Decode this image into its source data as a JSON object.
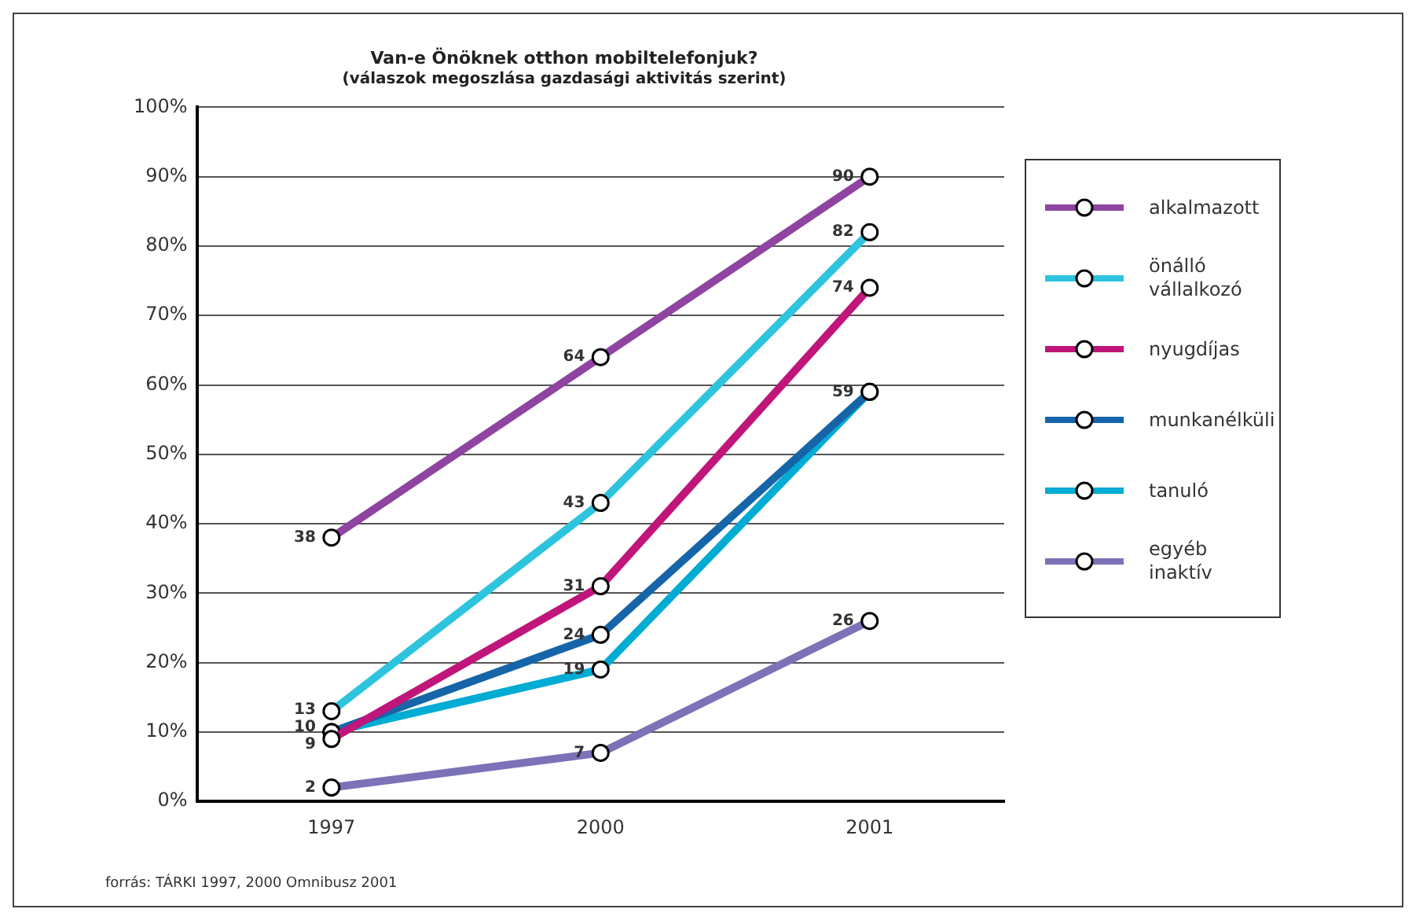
{
  "chart_data": {
    "type": "line",
    "title": "Van-e Önöknek otthon mobiltelefonjuk?",
    "subtitle": "(válaszok megoszlása gazdasági aktivitás szerint)",
    "categories": [
      "1997",
      "2000",
      "2001"
    ],
    "series": [
      {
        "name": "alkalmazott",
        "color": "#8e44a0",
        "values": [
          38,
          64,
          90
        ],
        "value_labels": [
          "38",
          "64",
          "90"
        ]
      },
      {
        "name": "önálló vállalkozó",
        "color": "#2ec4de",
        "values": [
          13,
          43,
          82
        ],
        "value_labels": [
          "13",
          "43",
          "82"
        ]
      },
      {
        "name": "nyugdíjas",
        "color": "#c0157a",
        "values": [
          9,
          31,
          74
        ],
        "value_labels": [
          "9",
          "31",
          "74"
        ]
      },
      {
        "name": "munkanélküli",
        "color": "#1565a8",
        "values": [
          10,
          24,
          59
        ],
        "value_labels": [
          "10",
          "24",
          "59"
        ]
      },
      {
        "name": "tanuló",
        "color": "#00acd4",
        "values": [
          10,
          19,
          59
        ],
        "value_labels": [
          null,
          "19",
          null
        ]
      },
      {
        "name": "egyéb inaktív",
        "color": "#7b72b8",
        "values": [
          2,
          7,
          26
        ],
        "value_labels": [
          "2",
          "7",
          "26"
        ]
      }
    ],
    "ylim": [
      0,
      100
    ],
    "yticks": [
      {
        "value": 0,
        "label": "0%"
      },
      {
        "value": 10,
        "label": "10%"
      },
      {
        "value": 20,
        "label": "20%"
      },
      {
        "value": 30,
        "label": "30%"
      },
      {
        "value": 40,
        "label": "40%"
      },
      {
        "value": 50,
        "label": "50%"
      },
      {
        "value": 60,
        "label": "60%"
      },
      {
        "value": 70,
        "label": "70%"
      },
      {
        "value": 80,
        "label": "80%"
      },
      {
        "value": 90,
        "label": "90%"
      },
      {
        "value": 100,
        "label": "100%"
      }
    ],
    "grid": "y",
    "legend": "right",
    "marker": "circle",
    "line_style": "solid",
    "annotations": [
      "forrás: TÁRKI 1997, 2000 Omnibusz 2001"
    ]
  }
}
